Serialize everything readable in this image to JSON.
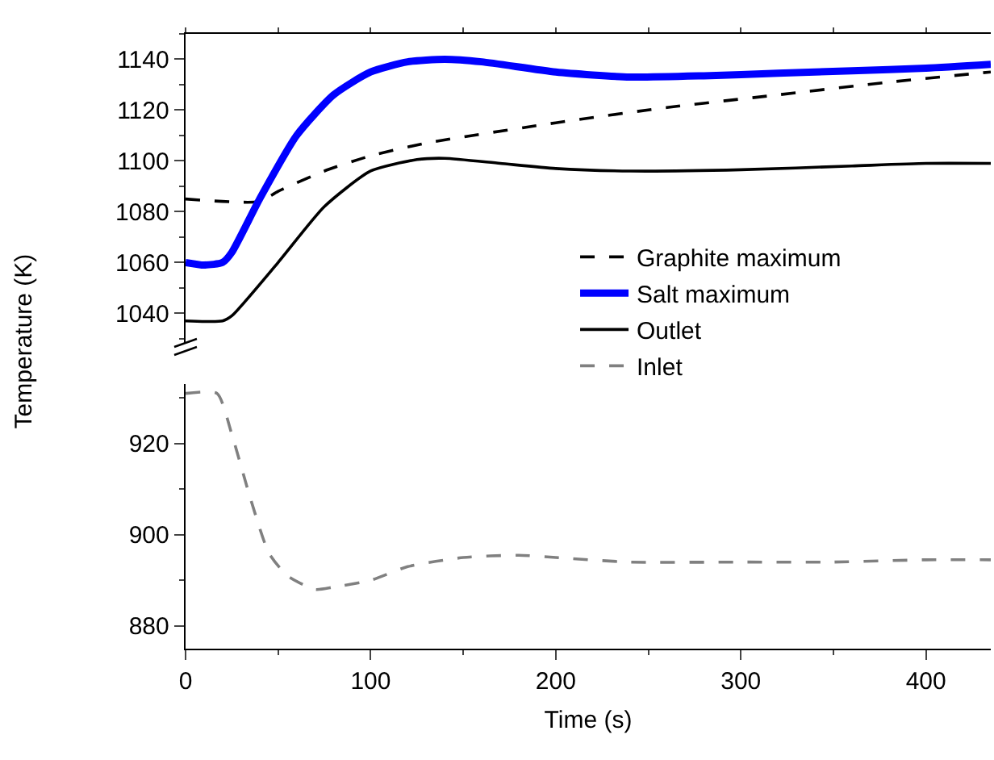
{
  "chart_data": [
    {
      "type": "line",
      "xlim": [
        0,
        435
      ],
      "xticks": [
        {
          "value": 0,
          "label": null
        },
        {
          "value": 100,
          "label": null
        },
        {
          "value": 200,
          "label": null
        },
        {
          "value": 300,
          "label": null
        },
        {
          "value": 400,
          "label": null
        }
      ],
      "ylim": [
        1028,
        1150
      ],
      "yticks": [
        1040,
        1060,
        1080,
        1100,
        1120,
        1140
      ],
      "tick_labels": "y",
      "grid": false,
      "legend": "bottom right",
      "series": [
        {
          "name": "Graphite maximum",
          "color": "#000000",
          "line_style": "dashed",
          "x": [
            0,
            40,
            50,
            75,
            100,
            130,
            200,
            260,
            320,
            380,
            435
          ],
          "values": [
            1085,
            1084,
            1088,
            1096,
            1102,
            1107,
            1115,
            1121,
            1126,
            1131,
            1135
          ]
        },
        {
          "name": "Salt maximum",
          "color": "#0000ff",
          "line_style": "solid",
          "x": [
            0,
            10,
            20,
            25,
            40,
            60,
            80,
            100,
            120,
            140,
            160,
            200,
            240,
            280,
            320,
            360,
            400,
            435
          ],
          "values": [
            1060,
            1059,
            1060,
            1064,
            1085,
            1110,
            1126,
            1135,
            1139,
            1140,
            1139,
            1135,
            1133,
            1133.5,
            1134.5,
            1135.5,
            1136.5,
            1138
          ]
        },
        {
          "name": "Outlet",
          "color": "#000000",
          "line_style": "solid",
          "x": [
            0,
            20,
            25,
            50,
            75,
            100,
            125,
            140,
            170,
            200,
            240,
            300,
            360,
            400,
            435
          ],
          "values": [
            1037,
            1037,
            1039,
            1060,
            1082,
            1096,
            1100.5,
            1101,
            1099,
            1097,
            1096,
            1096.5,
            1098,
            1099,
            1099
          ]
        }
      ]
    },
    {
      "type": "line",
      "xlabel": "Time (s)",
      "ylabel": "Temperature (K)",
      "xlim": [
        0,
        435
      ],
      "xticks": [
        0,
        100,
        200,
        300,
        400
      ],
      "ylim": [
        875,
        933
      ],
      "yticks": [
        880,
        900,
        920
      ],
      "grid": false,
      "legend": "top",
      "series": [
        {
          "name": "Inlet",
          "color": "#808080",
          "line_style": "dashed",
          "x": [
            0,
            17,
            25,
            35,
            45,
            55,
            70,
            80,
            100,
            120,
            150,
            180,
            200,
            240,
            300,
            350,
            400,
            435
          ],
          "values": [
            931,
            931,
            922,
            908,
            896,
            891,
            888,
            888.5,
            890,
            893,
            895,
            895.5,
            895,
            894,
            894,
            894,
            894.5,
            894.5
          ]
        }
      ]
    }
  ]
}
